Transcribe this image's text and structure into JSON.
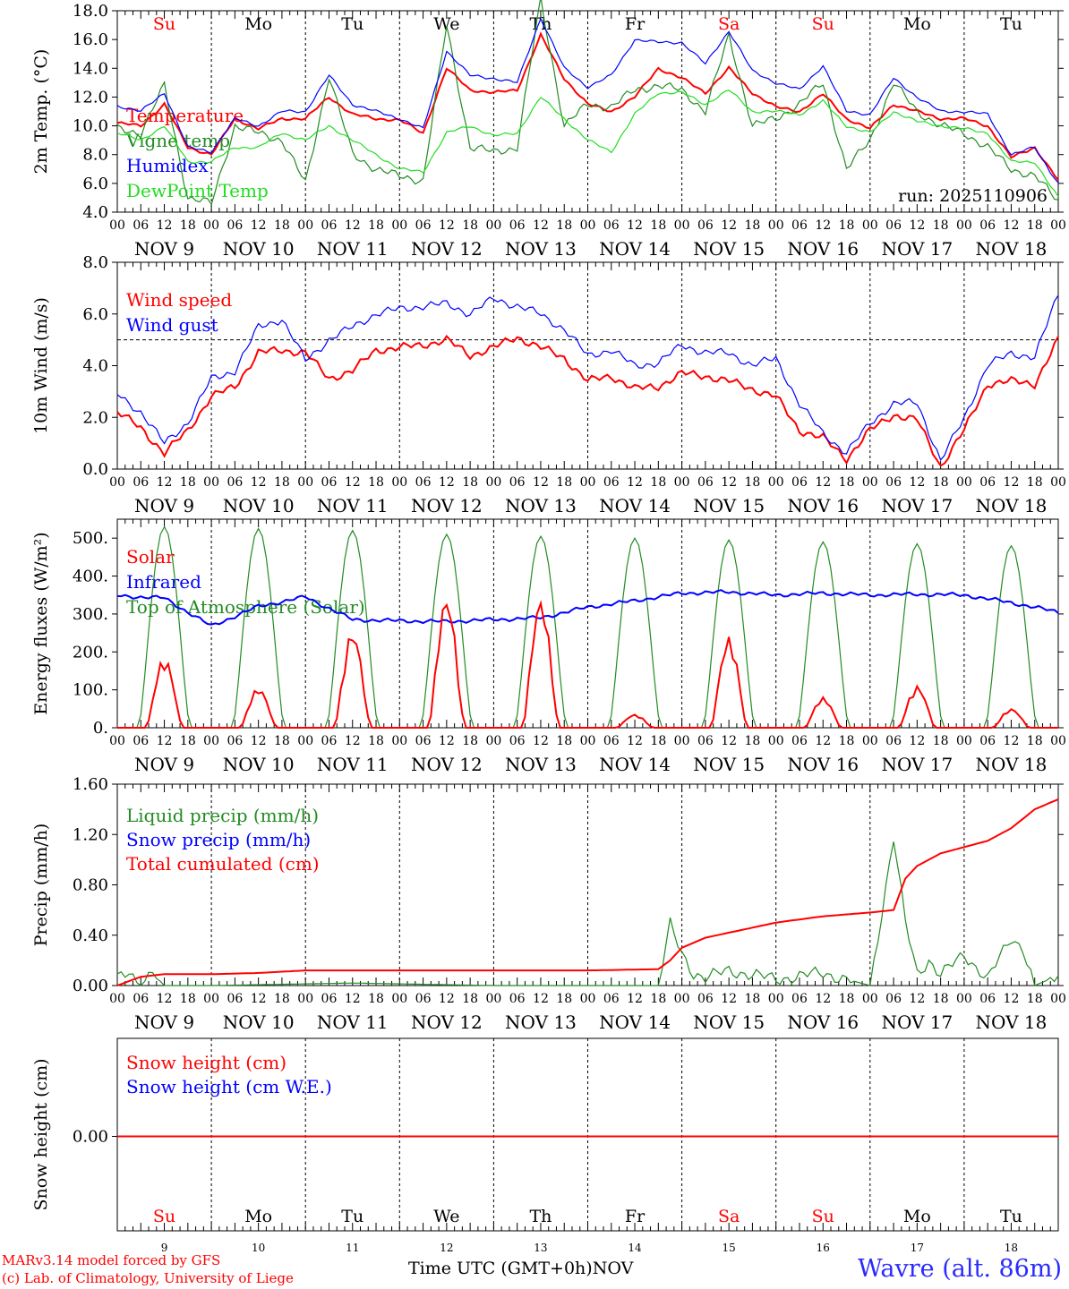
{
  "run_label": "run: 2025110906",
  "xaxis": {
    "hour_ticks": [
      "00",
      "06",
      "12",
      "18"
    ],
    "last_tick": "00",
    "day_labels": [
      "NOV  9",
      "NOV 10",
      "NOV 11",
      "NOV 12",
      "NOV 13",
      "NOV 14",
      "NOV 15",
      "NOV 16",
      "NOV 17",
      "NOV 18"
    ],
    "weekdays": [
      "Su",
      "Mo",
      "Tu",
      "We",
      "Th",
      "Fr",
      "Sa",
      "Su",
      "Mo",
      "Tu"
    ],
    "weekday_colors": [
      "#ff0000",
      "#000000",
      "#000000",
      "#000000",
      "#000000",
      "#000000",
      "#ff0000",
      "#ff0000",
      "#000000",
      "#000000"
    ],
    "day_numbers": [
      "9",
      "10",
      "11",
      "12",
      "13",
      "14",
      "15",
      "16",
      "17",
      "18"
    ]
  },
  "footer": {
    "credit_line1": "MARv3.14 model forced by GFS",
    "credit_line2": "(c) Lab. of Climatology, University of Liege",
    "time_label": "Time UTC (GMT+0h)",
    "month": "NOV",
    "station": "Wavre (alt. 86m)"
  },
  "chart_data": [
    {
      "type": "line",
      "ylabel": "2m Temp. (°C)",
      "ylim": [
        4,
        18
      ],
      "yticks": [
        "4.0",
        "6.0",
        "8.0",
        "10.0",
        "12.0",
        "14.0",
        "16.0",
        "18.0"
      ],
      "x_hours": [
        0,
        6,
        12,
        18,
        24,
        30,
        36,
        42,
        48,
        54,
        60,
        66,
        72,
        78,
        84,
        90,
        96,
        102,
        108,
        114,
        120,
        126,
        132,
        138,
        144,
        150,
        156,
        162,
        168,
        174,
        180,
        186,
        192,
        198,
        204,
        210,
        216,
        222,
        228,
        234,
        240
      ],
      "series": [
        {
          "name": "Temperature",
          "color": "#ff0000",
          "values": [
            10.2,
            10.0,
            11.5,
            8.5,
            8.0,
            10.5,
            9.8,
            10.5,
            10.5,
            12.0,
            10.8,
            10.5,
            10.4,
            9.5,
            14.0,
            12.5,
            12.3,
            12.5,
            16.3,
            13.3,
            11.5,
            11.0,
            12.0,
            14.0,
            13.3,
            12.3,
            14.0,
            12.3,
            11.3,
            11.0,
            12.2,
            10.5,
            9.8,
            11.5,
            11.0,
            10.5,
            10.5,
            10.0,
            7.8,
            8.5,
            6.2
          ]
        },
        {
          "name": "Vigne temp",
          "color": "#228b22",
          "values": [
            9.8,
            9.5,
            12.8,
            5.0,
            4.6,
            10.0,
            9.5,
            9.0,
            6.0,
            13.5,
            8.0,
            7.0,
            6.5,
            6.2,
            17.0,
            8.5,
            8.2,
            8.5,
            18.8,
            10.0,
            11.5,
            11.3,
            12.5,
            12.8,
            12.5,
            11.0,
            16.3,
            10.0,
            10.5,
            11.5,
            13.0,
            7.0,
            9.0,
            13.0,
            11.0,
            10.0,
            9.5,
            8.5,
            7.0,
            6.5,
            4.8
          ]
        },
        {
          "name": "Humidex",
          "color": "#0000ff",
          "values": [
            11.4,
            11.0,
            12.3,
            8.5,
            8.2,
            10.5,
            10.0,
            11.0,
            11.0,
            13.5,
            11.5,
            11.0,
            10.5,
            9.8,
            15.2,
            13.5,
            13.3,
            13.0,
            17.5,
            14.0,
            12.7,
            13.5,
            16.0,
            15.8,
            15.8,
            14.3,
            16.6,
            13.8,
            13.0,
            12.5,
            14.2,
            11.0,
            10.8,
            13.3,
            12.0,
            11.0,
            11.0,
            10.8,
            8.0,
            8.5,
            6.0
          ]
        },
        {
          "name": "DewPoint Temp",
          "color": "#22dd22",
          "values": [
            9.5,
            9.0,
            10.0,
            7.5,
            7.5,
            8.5,
            8.5,
            9.5,
            9.0,
            10.0,
            9.0,
            8.0,
            7.0,
            6.8,
            9.5,
            10.0,
            9.3,
            9.5,
            12.0,
            10.5,
            9.0,
            8.2,
            10.8,
            12.3,
            12.3,
            11.5,
            12.5,
            11.0,
            11.0,
            10.8,
            11.7,
            10.0,
            9.5,
            11.0,
            10.3,
            10.0,
            9.8,
            9.5,
            7.5,
            7.5,
            5.0
          ]
        }
      ]
    },
    {
      "type": "line",
      "ylabel": "10m Wind (m/s)",
      "ylim": [
        0,
        8
      ],
      "yticks": [
        "0.0",
        "2.0",
        "4.0",
        "6.0",
        "8.0"
      ],
      "reference_line": 5,
      "x_hours": [
        0,
        6,
        12,
        18,
        24,
        30,
        36,
        42,
        48,
        54,
        60,
        66,
        72,
        78,
        84,
        90,
        96,
        102,
        108,
        114,
        120,
        126,
        132,
        138,
        144,
        150,
        156,
        162,
        168,
        174,
        180,
        186,
        192,
        198,
        204,
        210,
        216,
        222,
        228,
        234,
        240
      ],
      "series": [
        {
          "name": "Wind speed",
          "color": "#ff0000",
          "values": [
            2.2,
            1.6,
            0.6,
            1.5,
            2.8,
            3.2,
            4.5,
            4.6,
            4.5,
            3.5,
            3.8,
            4.6,
            4.7,
            4.8,
            5.0,
            4.4,
            4.7,
            5.1,
            4.7,
            4.3,
            3.4,
            3.6,
            3.1,
            3.2,
            3.7,
            3.6,
            3.4,
            3.1,
            2.8,
            1.5,
            1.2,
            0.4,
            1.5,
            2.1,
            1.9,
            0.1,
            1.5,
            3.3,
            3.4,
            3.3,
            5.0
          ]
        },
        {
          "name": "Wind gust",
          "color": "#0000ff",
          "values": [
            2.9,
            2.2,
            1.0,
            1.8,
            3.5,
            3.8,
            5.5,
            5.8,
            4.2,
            5.0,
            5.5,
            6.0,
            6.2,
            6.3,
            6.4,
            6.0,
            6.6,
            6.3,
            6.0,
            5.4,
            4.4,
            4.6,
            4.0,
            4.1,
            4.8,
            4.5,
            4.5,
            4.0,
            4.3,
            2.5,
            1.4,
            0.6,
            1.8,
            2.5,
            2.6,
            0.3,
            2.0,
            4.0,
            4.5,
            4.3,
            6.8
          ]
        }
      ]
    },
    {
      "type": "line",
      "ylabel": "Energy fluxes (W/m²)",
      "ylim": [
        0,
        550
      ],
      "yticks": [
        "0.",
        "100.",
        "200.",
        "300.",
        "400.",
        "500."
      ],
      "series": [
        {
          "name": "Solar",
          "color": "#ff0000",
          "daily_peaks": [
            185,
            105,
            255,
            345,
            340,
            35,
            240,
            80,
            110,
            50
          ]
        },
        {
          "name": "Infrared",
          "color": "#0000ff",
          "x_hours": [
            0,
            12,
            24,
            36,
            48,
            60,
            72,
            84,
            96,
            108,
            120,
            132,
            144,
            156,
            168,
            180,
            192,
            204,
            216,
            228,
            240
          ],
          "values": [
            348,
            342,
            268,
            320,
            345,
            285,
            282,
            280,
            285,
            290,
            318,
            335,
            355,
            358,
            350,
            355,
            350,
            352,
            350,
            330,
            305
          ]
        },
        {
          "name": "Top of Atmosphere (Solar)",
          "color": "#228b22",
          "daily_peaks": [
            530,
            525,
            520,
            510,
            505,
            500,
            495,
            490,
            485,
            480
          ]
        }
      ]
    },
    {
      "type": "line",
      "ylabel": "Precip (mm/h)",
      "ylim": [
        0,
        1.6
      ],
      "yticks": [
        "0.00",
        "0.40",
        "0.80",
        "1.20",
        "1.60"
      ],
      "series": [
        {
          "name": "Liquid precip (mm/h)",
          "color": "#228b22",
          "x_hours": [
            0,
            3,
            6,
            9,
            12,
            24,
            60,
            96,
            138,
            141,
            144,
            147,
            150,
            156,
            168,
            180,
            192,
            198,
            201,
            204,
            207,
            210,
            216,
            222,
            228,
            231,
            234,
            240
          ],
          "values": [
            0.05,
            0.12,
            0.0,
            0.1,
            0.0,
            0.0,
            0.02,
            0.0,
            0.0,
            0.48,
            0.25,
            0.1,
            0.06,
            0.12,
            0.05,
            0.1,
            0.0,
            1.17,
            0.5,
            0.1,
            0.2,
            0.08,
            0.25,
            0.05,
            0.38,
            0.3,
            0.0,
            0.08
          ]
        },
        {
          "name": "Snow precip (mm/h)",
          "color": "#0000ff",
          "values": []
        },
        {
          "name": "Total cumulated (cm)",
          "color": "#ff0000",
          "x_hours": [
            0,
            6,
            12,
            24,
            36,
            48,
            72,
            96,
            120,
            138,
            141,
            144,
            150,
            156,
            162,
            168,
            180,
            192,
            198,
            201,
            204,
            210,
            216,
            222,
            228,
            234,
            240
          ],
          "values": [
            0.0,
            0.07,
            0.09,
            0.09,
            0.1,
            0.12,
            0.12,
            0.12,
            0.12,
            0.13,
            0.2,
            0.3,
            0.38,
            0.42,
            0.46,
            0.5,
            0.55,
            0.58,
            0.6,
            0.85,
            0.95,
            1.05,
            1.1,
            1.15,
            1.25,
            1.4,
            1.48
          ]
        }
      ]
    },
    {
      "type": "line",
      "ylabel": "Snow height (cm)",
      "yticks": [
        "0.00"
      ],
      "series": [
        {
          "name": "Snow height (cm)",
          "color": "#ff0000",
          "values": [
            0,
            0
          ]
        },
        {
          "name": "Snow height (cm W.E.)",
          "color": "#0000ff",
          "values": []
        }
      ]
    }
  ]
}
